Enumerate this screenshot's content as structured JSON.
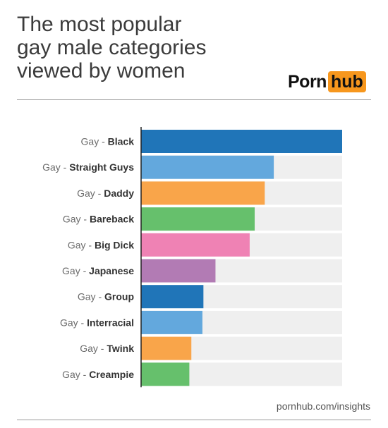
{
  "header": {
    "title": "The most popular\ngay male categories\nviewed by women"
  },
  "logo": {
    "part1": "Porn",
    "part2": "hub"
  },
  "footer": {
    "source": "pornhub.com/insights"
  },
  "chart_data": {
    "type": "bar",
    "orientation": "horizontal",
    "title": "The most popular gay male categories viewed by women",
    "xlabel": "",
    "ylabel": "",
    "xlim": [
      0,
      100
    ],
    "grid": false,
    "legend": "none",
    "categories": [
      "Gay - Black",
      "Gay - Straight Guys",
      "Gay - Daddy",
      "Gay - Bareback",
      "Gay - Big Dick",
      "Gay - Japanese",
      "Gay - Group",
      "Gay - Interracial",
      "Gay - Twink",
      "Gay - Creampie"
    ],
    "values": [
      100,
      66,
      61.5,
      56.5,
      54,
      37,
      31,
      30.5,
      25,
      24
    ],
    "colors": [
      "#2075b8",
      "#63a8dd",
      "#f9a54a",
      "#66c06c",
      "#ef82b4",
      "#b27bb4",
      "#2075b8",
      "#63a8dd",
      "#f9a54a",
      "#66c06c"
    ],
    "track_color": "#efefef"
  }
}
